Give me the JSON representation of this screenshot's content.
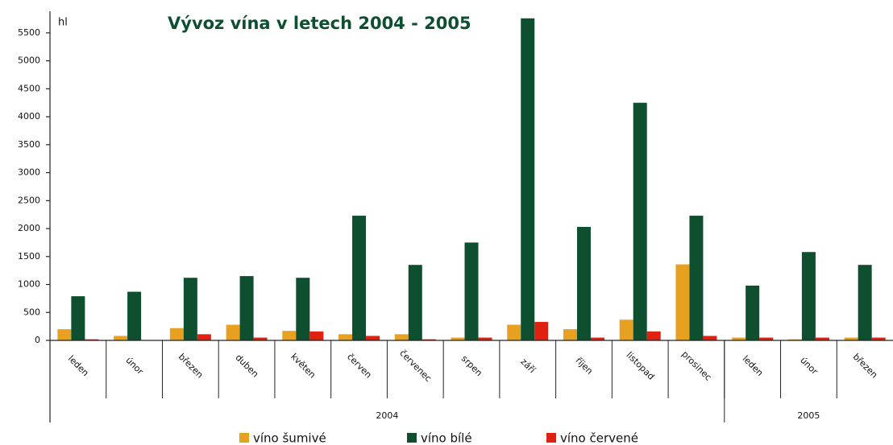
{
  "chart_data": {
    "type": "bar",
    "title": "Vývoz vína v letech 2004 - 2005",
    "y_label": "hl",
    "categories": [
      "leden",
      "únor",
      "březen",
      "duben",
      "květen",
      "červen",
      "červenec",
      "srpen",
      "září",
      "říjen",
      "listopad",
      "prosinec",
      "leden",
      "únor",
      "březen"
    ],
    "year_groups": [
      {
        "label": "2004",
        "count": 12
      },
      {
        "label": "2005",
        "count": 3
      }
    ],
    "series": [
      {
        "name": "víno šumivé",
        "color": "#e8a020",
        "values": [
          200,
          80,
          220,
          280,
          170,
          110,
          110,
          50,
          280,
          200,
          370,
          1360,
          50,
          20,
          50
        ]
      },
      {
        "name": "víno bílé",
        "color": "#0d4f2f",
        "values": [
          790,
          870,
          1120,
          1150,
          1120,
          2230,
          1350,
          1750,
          5760,
          2030,
          4250,
          2230,
          980,
          1580,
          1350
        ]
      },
      {
        "name": "víno červené",
        "color": "#e02010",
        "values": [
          20,
          0,
          110,
          50,
          160,
          80,
          20,
          50,
          330,
          50,
          160,
          80,
          50,
          50,
          50
        ]
      }
    ],
    "ylim": [
      0,
      5800
    ],
    "yticks": [
      0,
      500,
      1000,
      1500,
      2000,
      2500,
      3000,
      3500,
      4000,
      4500,
      5000,
      5500
    ],
    "grid": false
  }
}
